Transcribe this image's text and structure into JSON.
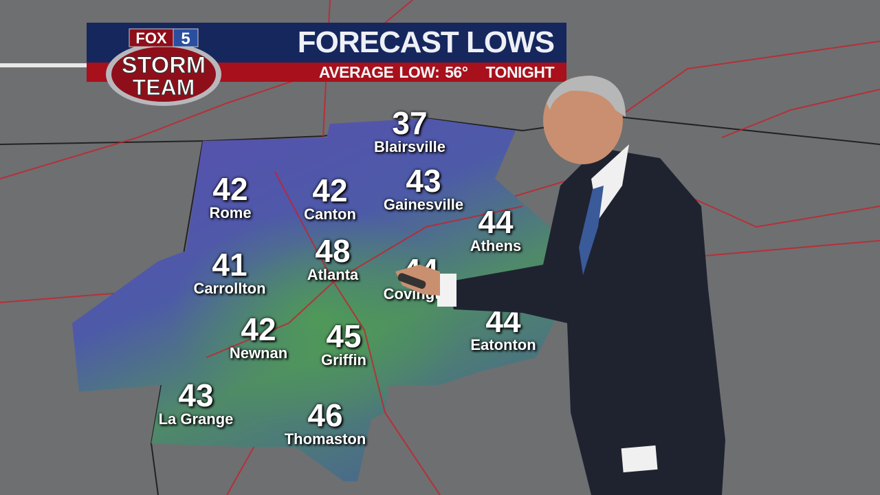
{
  "logo": {
    "line1": "FOX",
    "line1b": "5",
    "line2": "STORM",
    "line3": "TEAM"
  },
  "header": {
    "title": "FORECAST LOWS",
    "subtitle": "AVERAGE LOW: 56°",
    "period": "TONIGHT"
  },
  "colors": {
    "banner_blue": "#16275e",
    "banner_red": "#a8101c",
    "cold": "#5a4fb0",
    "mild": "#4f9a5a"
  },
  "cities": [
    {
      "name": "Blairsville",
      "low": "37"
    },
    {
      "name": "Rome",
      "low": "42"
    },
    {
      "name": "Canton",
      "low": "42"
    },
    {
      "name": "Gainesville",
      "low": "43"
    },
    {
      "name": "Athens",
      "low": "44"
    },
    {
      "name": "Carrollton",
      "low": "41"
    },
    {
      "name": "Atlanta",
      "low": "48"
    },
    {
      "name": "Covington",
      "low": "44"
    },
    {
      "name": "Eatonton",
      "low": "44"
    },
    {
      "name": "Newnan",
      "low": "42"
    },
    {
      "name": "Griffin",
      "low": "45"
    },
    {
      "name": "La Grange",
      "low": "43"
    },
    {
      "name": "Thomaston",
      "low": "46"
    }
  ]
}
